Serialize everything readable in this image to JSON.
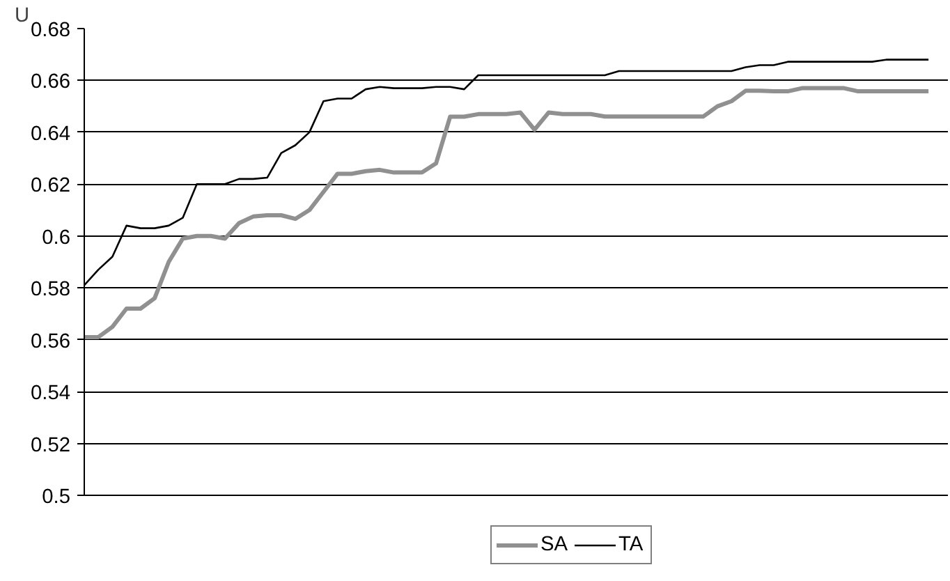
{
  "chart_data": {
    "type": "line",
    "ylabel": "U",
    "categories": [
      null,
      null,
      null,
      null,
      null,
      null,
      null,
      null,
      null,
      null,
      null,
      null,
      null,
      null,
      null,
      null,
      null,
      null,
      null,
      null,
      null,
      null,
      null,
      null,
      null,
      null,
      null,
      null,
      null,
      null,
      null,
      null,
      null,
      null,
      null,
      null,
      null,
      null,
      null,
      null,
      null,
      null,
      null,
      null,
      null,
      null,
      null,
      null,
      null,
      null,
      null,
      null,
      null,
      null,
      null,
      null,
      null,
      null,
      null,
      null,
      null
    ],
    "series": [
      {
        "name": "SA",
        "color": "#909090",
        "values": [
          0.561,
          0.561,
          0.565,
          0.572,
          0.572,
          0.576,
          0.59,
          0.599,
          0.6,
          0.6,
          0.599,
          0.605,
          0.6075,
          0.608,
          0.608,
          0.6066,
          0.61,
          0.617,
          0.624,
          0.624,
          0.625,
          0.6255,
          0.6245,
          0.6245,
          0.6245,
          0.628,
          0.646,
          0.646,
          0.647,
          0.647,
          0.647,
          0.6476,
          0.641,
          0.6476,
          0.647,
          0.647,
          0.647,
          0.6461,
          0.6461,
          0.6461,
          0.6461,
          0.6461,
          0.6461,
          0.6461,
          0.6461,
          0.65,
          0.652,
          0.656,
          0.656,
          0.6558,
          0.6558,
          0.657,
          0.657,
          0.657,
          0.657,
          0.6558,
          0.6558,
          0.6558,
          0.6558,
          0.6558,
          0.6558
        ]
      },
      {
        "name": "TA",
        "color": "#000000",
        "values": [
          0.581,
          0.587,
          0.592,
          0.604,
          0.603,
          0.603,
          0.604,
          0.607,
          0.62,
          0.62,
          0.62,
          0.622,
          0.622,
          0.6225,
          0.632,
          0.635,
          0.64,
          0.652,
          0.653,
          0.653,
          0.6566,
          0.6575,
          0.657,
          0.657,
          0.657,
          0.6575,
          0.6575,
          0.6566,
          0.662,
          0.662,
          0.662,
          0.662,
          0.662,
          0.662,
          0.662,
          0.662,
          0.662,
          0.662,
          0.6636,
          0.6636,
          0.6636,
          0.6636,
          0.6636,
          0.6636,
          0.6636,
          0.6636,
          0.6636,
          0.6651,
          0.6659,
          0.6659,
          0.6672,
          0.6672,
          0.6672,
          0.6672,
          0.6672,
          0.6672,
          0.6672,
          0.668,
          0.668,
          0.668,
          0.668
        ]
      }
    ],
    "ylim": [
      0.5,
      0.68
    ],
    "yticks": [
      0.5,
      0.52,
      0.54,
      0.56,
      0.58,
      0.6,
      0.62,
      0.64,
      0.66,
      0.68
    ],
    "grid": "y",
    "legend": "bottom",
    "tick_labels": "y",
    "marker": "none",
    "line_style": "solid"
  }
}
